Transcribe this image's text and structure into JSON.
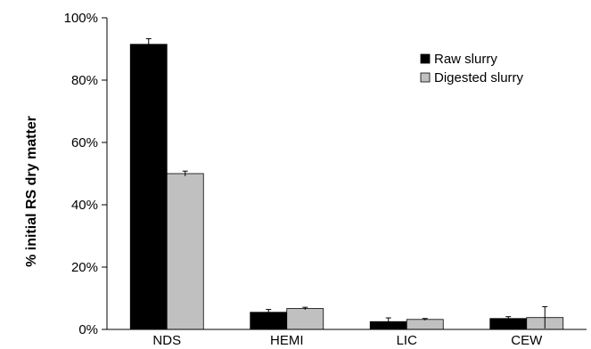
{
  "chart_data": {
    "type": "bar",
    "title": "",
    "xlabel": "",
    "ylabel": "% initial RS dry matter",
    "ylim": [
      0,
      100
    ],
    "yticks": [
      "0%",
      "20%",
      "40%",
      "60%",
      "80%",
      "100%"
    ],
    "categories": [
      "NDS",
      "HEMI",
      "LIC",
      "CEW"
    ],
    "series": [
      {
        "name": "Raw slurry",
        "color": "#000000",
        "values": [
          91.5,
          5.5,
          2.5,
          3.5
        ],
        "errors": [
          1.8,
          0.9,
          1.2,
          0.6
        ]
      },
      {
        "name": "Digested slurry",
        "color": "#c0c0c0",
        "values": [
          50,
          6.7,
          3.2,
          3.8
        ],
        "errors": [
          0.8,
          0.4,
          0.3,
          3.5
        ]
      }
    ],
    "legend_position": "top-right",
    "grid": false
  }
}
